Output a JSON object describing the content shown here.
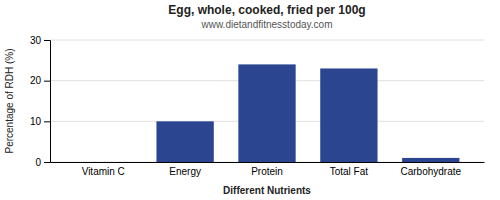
{
  "chart_data": {
    "type": "bar",
    "title": "Egg, whole, cooked, fried per 100g",
    "subtitle": "www.dietandfitnesstoday.com",
    "categories": [
      "Vitamin C",
      "Energy",
      "Protein",
      "Total Fat",
      "Carbohydrate"
    ],
    "values": [
      0,
      10,
      24,
      23,
      1
    ],
    "color": "#2b4590",
    "ylabel": "Percentage of RDH (%)",
    "xlabel": "Different Nutrients",
    "ylim": [
      0,
      30
    ],
    "yticks": [
      0,
      10,
      20,
      30
    ],
    "grid": true
  }
}
